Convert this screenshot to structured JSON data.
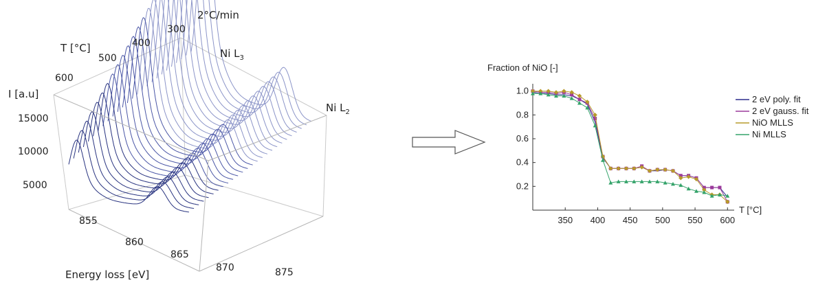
{
  "chart_data": [
    {
      "type": "line",
      "view": "3d-waterfall",
      "title": "2°C/min",
      "xlabel": "Energy loss [eV]",
      "ylabel": "T [°C]",
      "zlabel": "I [a.u]",
      "x_ticks": [
        "855",
        "860",
        "865",
        "870",
        "875"
      ],
      "y_ticks": [
        "300",
        "400",
        "500",
        "600"
      ],
      "z_ticks": [
        "5000",
        "10000",
        "15000"
      ],
      "xlim": [
        852,
        877
      ],
      "ylim": [
        300,
        600
      ],
      "annotations": [
        {
          "text": "Ni L",
          "sub": "3"
        },
        {
          "text": "Ni L",
          "sub": "2"
        }
      ],
      "peaks": {
        "L3_eV": 853.5,
        "L2_eV": 871
      },
      "series_count": 26,
      "color": "#2d3a8c"
    },
    {
      "type": "line",
      "title": "Fraction of NiO [-]",
      "xlabel": "T [°C]",
      "ylabel": "",
      "xlim": [
        300,
        605
      ],
      "ylim": [
        0,
        1.05
      ],
      "x_ticks": [
        350,
        400,
        450,
        500,
        550,
        600
      ],
      "y_ticks": [
        "0.2",
        "0.4",
        "0.6",
        "0.8",
        "1.0"
      ],
      "legend_position": "right",
      "x": [
        300,
        312,
        324,
        336,
        348,
        360,
        372,
        384,
        396,
        408,
        420,
        432,
        444,
        456,
        468,
        480,
        492,
        504,
        516,
        528,
        540,
        552,
        564,
        576,
        588,
        600
      ],
      "series": [
        {
          "name": "2 eV poly. fit",
          "color": "#2b2b8c",
          "marker": "none",
          "values": [
            0.99,
            0.98,
            0.98,
            0.97,
            0.97,
            0.96,
            0.93,
            0.89,
            0.74,
            0.44,
            0.35,
            0.35,
            0.35,
            0.35,
            0.36,
            0.33,
            0.33,
            0.34,
            0.33,
            0.29,
            0.29,
            0.27,
            0.19,
            0.19,
            0.19,
            0.11
          ]
        },
        {
          "name": "2 eV gauss. fit",
          "color": "#9b3a9b",
          "marker": "square",
          "values": [
            1.0,
            0.99,
            0.99,
            0.98,
            0.99,
            0.97,
            0.93,
            0.9,
            0.77,
            0.45,
            0.35,
            0.35,
            0.35,
            0.35,
            0.37,
            0.33,
            0.34,
            0.34,
            0.33,
            0.29,
            0.29,
            0.27,
            0.19,
            0.19,
            0.19,
            0.07
          ]
        },
        {
          "name": "NiO MLLS",
          "color": "#b79a2a",
          "marker": "diamond",
          "values": [
            1.0,
            1.0,
            1.0,
            0.99,
            1.0,
            0.99,
            0.96,
            0.91,
            0.8,
            0.45,
            0.35,
            0.35,
            0.35,
            0.35,
            0.36,
            0.33,
            0.34,
            0.34,
            0.33,
            0.27,
            0.28,
            0.26,
            0.17,
            0.13,
            0.13,
            0.07
          ]
        },
        {
          "name": "Ni MLLS",
          "color": "#34a36a",
          "marker": "triangle",
          "values": [
            0.98,
            0.98,
            0.97,
            0.96,
            0.96,
            0.94,
            0.9,
            0.86,
            0.71,
            0.42,
            0.23,
            0.24,
            0.24,
            0.24,
            0.24,
            0.24,
            0.24,
            0.23,
            0.22,
            0.21,
            0.18,
            0.16,
            0.15,
            0.12,
            0.13,
            0.12
          ]
        }
      ]
    }
  ]
}
